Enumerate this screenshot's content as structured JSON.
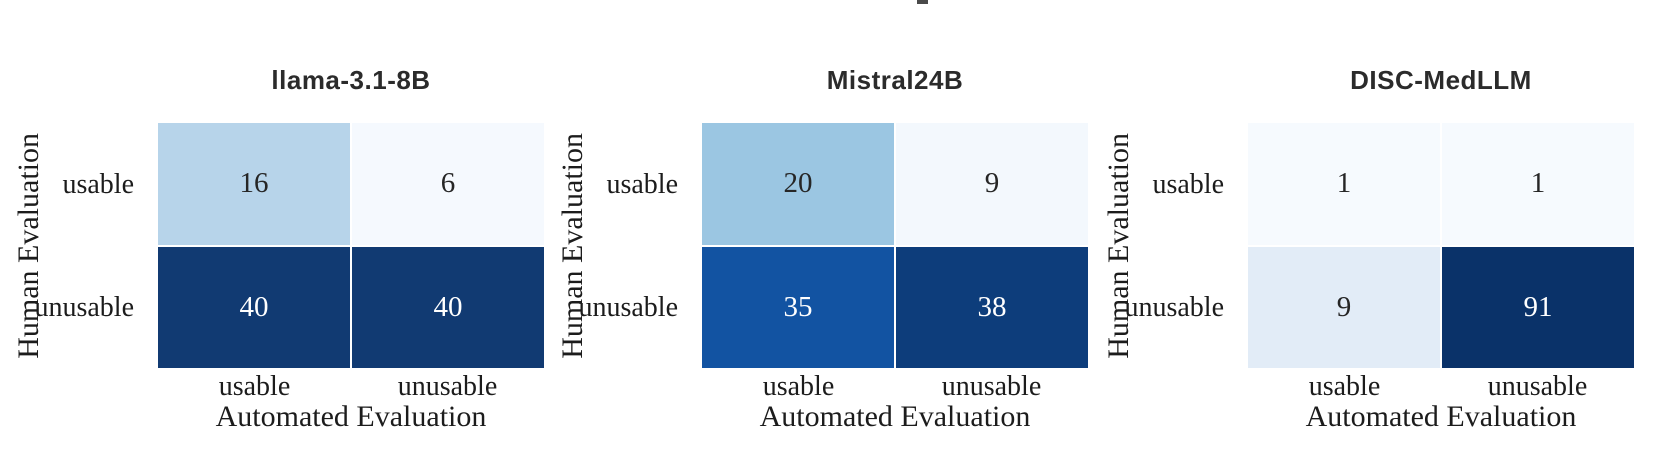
{
  "figure": {
    "background": "#ffffff",
    "colormap": "Blues",
    "annotation_dark_text": "#262626",
    "annotation_light_text": "#ffffff",
    "cropped_text_fragment": ""
  },
  "chart_data": [
    {
      "type": "heatmap",
      "title": "llama-3.1-8B",
      "xlabel": "Automated Evaluation",
      "ylabel": "Human Evaluation",
      "rows": [
        "usable",
        "unusable"
      ],
      "cols": [
        "usable",
        "unusable"
      ],
      "values": [
        [
          16,
          6
        ],
        [
          40,
          40
        ]
      ],
      "cell_colors": [
        [
          "#b7d4ea",
          "#f5f9fe"
        ],
        [
          "#113a72",
          "#113a72"
        ]
      ],
      "text_colors": [
        [
          "#262626",
          "#262626"
        ],
        [
          "#ffffff",
          "#ffffff"
        ]
      ],
      "value_range": [
        6,
        40
      ],
      "legend": "none"
    },
    {
      "type": "heatmap",
      "title": "Mistral24B",
      "xlabel": "Automated Evaluation",
      "ylabel": "Human Evaluation",
      "rows": [
        "usable",
        "unusable"
      ],
      "cols": [
        "usable",
        "unusable"
      ],
      "values": [
        [
          20,
          9
        ],
        [
          35,
          38
        ]
      ],
      "cell_colors": [
        [
          "#9bc6e2",
          "#f3f8fd"
        ],
        [
          "#1253a2",
          "#0d3d7b"
        ]
      ],
      "text_colors": [
        [
          "#262626",
          "#262626"
        ],
        [
          "#ffffff",
          "#ffffff"
        ]
      ],
      "value_range": [
        9,
        38
      ],
      "legend": "none"
    },
    {
      "type": "heatmap",
      "title": "DISC-MedLLM",
      "xlabel": "Automated Evaluation",
      "ylabel": "Human Evaluation",
      "rows": [
        "usable",
        "unusable"
      ],
      "cols": [
        "usable",
        "unusable"
      ],
      "values": [
        [
          1,
          1
        ],
        [
          9,
          91
        ]
      ],
      "cell_colors": [
        [
          "#f6fafe",
          "#f6fafe"
        ],
        [
          "#e2ecf7",
          "#0a3269"
        ]
      ],
      "text_colors": [
        [
          "#262626",
          "#262626"
        ],
        [
          "#262626",
          "#ffffff"
        ]
      ],
      "value_range": [
        1,
        91
      ],
      "legend": "none"
    }
  ]
}
